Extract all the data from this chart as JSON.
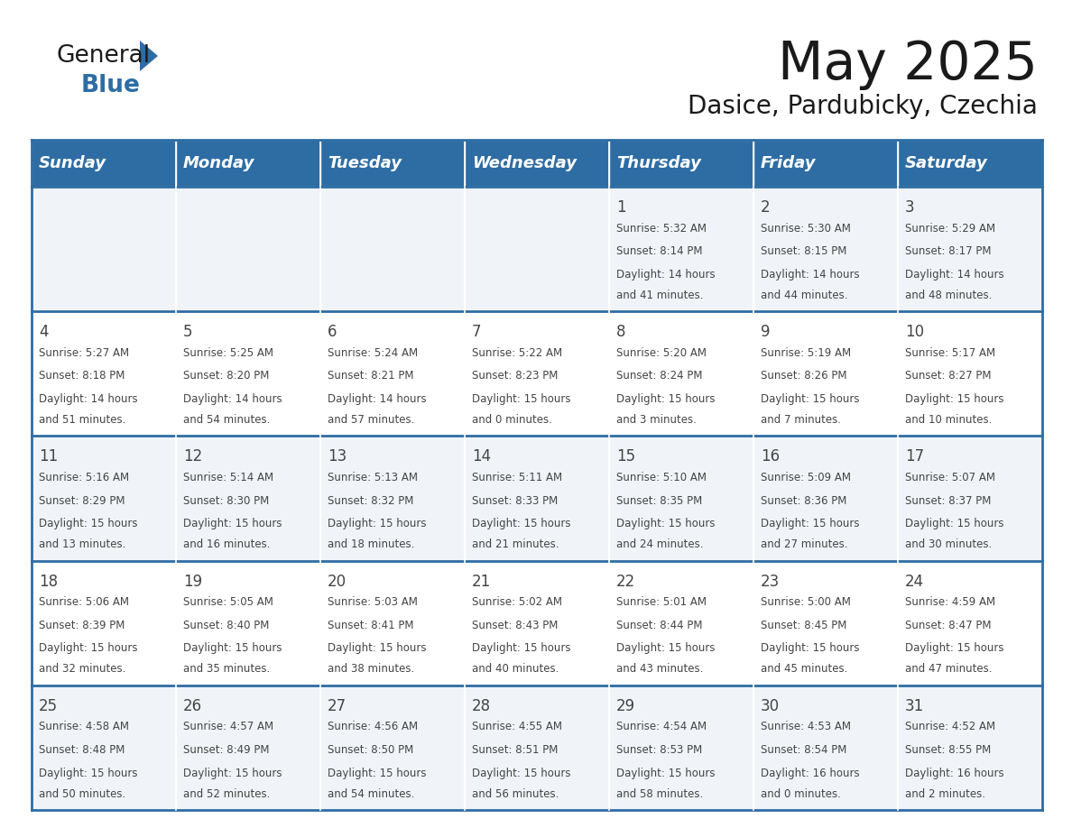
{
  "title": "May 2025",
  "subtitle": "Dasice, Pardubicky, Czechia",
  "days_of_week": [
    "Sunday",
    "Monday",
    "Tuesday",
    "Wednesday",
    "Thursday",
    "Friday",
    "Saturday"
  ],
  "header_bg": "#2e6da4",
  "header_text": "#ffffff",
  "row_bg_odd": "#f0f4f8",
  "row_bg_even": "#ffffff",
  "separator_color": "#2e6da4",
  "text_color": "#444444",
  "title_color": "#1a1a1a",
  "logo_black": "#1a1a1a",
  "logo_blue": "#2e6da4",
  "calendar_data": [
    [
      {
        "day": null,
        "sunrise": null,
        "sunset": null,
        "daylight": null
      },
      {
        "day": null,
        "sunrise": null,
        "sunset": null,
        "daylight": null
      },
      {
        "day": null,
        "sunrise": null,
        "sunset": null,
        "daylight": null
      },
      {
        "day": null,
        "sunrise": null,
        "sunset": null,
        "daylight": null
      },
      {
        "day": 1,
        "sunrise": "5:32 AM",
        "sunset": "8:14 PM",
        "daylight": "14 hours and 41 minutes."
      },
      {
        "day": 2,
        "sunrise": "5:30 AM",
        "sunset": "8:15 PM",
        "daylight": "14 hours and 44 minutes."
      },
      {
        "day": 3,
        "sunrise": "5:29 AM",
        "sunset": "8:17 PM",
        "daylight": "14 hours and 48 minutes."
      }
    ],
    [
      {
        "day": 4,
        "sunrise": "5:27 AM",
        "sunset": "8:18 PM",
        "daylight": "14 hours and 51 minutes."
      },
      {
        "day": 5,
        "sunrise": "5:25 AM",
        "sunset": "8:20 PM",
        "daylight": "14 hours and 54 minutes."
      },
      {
        "day": 6,
        "sunrise": "5:24 AM",
        "sunset": "8:21 PM",
        "daylight": "14 hours and 57 minutes."
      },
      {
        "day": 7,
        "sunrise": "5:22 AM",
        "sunset": "8:23 PM",
        "daylight": "15 hours and 0 minutes."
      },
      {
        "day": 8,
        "sunrise": "5:20 AM",
        "sunset": "8:24 PM",
        "daylight": "15 hours and 3 minutes."
      },
      {
        "day": 9,
        "sunrise": "5:19 AM",
        "sunset": "8:26 PM",
        "daylight": "15 hours and 7 minutes."
      },
      {
        "day": 10,
        "sunrise": "5:17 AM",
        "sunset": "8:27 PM",
        "daylight": "15 hours and 10 minutes."
      }
    ],
    [
      {
        "day": 11,
        "sunrise": "5:16 AM",
        "sunset": "8:29 PM",
        "daylight": "15 hours and 13 minutes."
      },
      {
        "day": 12,
        "sunrise": "5:14 AM",
        "sunset": "8:30 PM",
        "daylight": "15 hours and 16 minutes."
      },
      {
        "day": 13,
        "sunrise": "5:13 AM",
        "sunset": "8:32 PM",
        "daylight": "15 hours and 18 minutes."
      },
      {
        "day": 14,
        "sunrise": "5:11 AM",
        "sunset": "8:33 PM",
        "daylight": "15 hours and 21 minutes."
      },
      {
        "day": 15,
        "sunrise": "5:10 AM",
        "sunset": "8:35 PM",
        "daylight": "15 hours and 24 minutes."
      },
      {
        "day": 16,
        "sunrise": "5:09 AM",
        "sunset": "8:36 PM",
        "daylight": "15 hours and 27 minutes."
      },
      {
        "day": 17,
        "sunrise": "5:07 AM",
        "sunset": "8:37 PM",
        "daylight": "15 hours and 30 minutes."
      }
    ],
    [
      {
        "day": 18,
        "sunrise": "5:06 AM",
        "sunset": "8:39 PM",
        "daylight": "15 hours and 32 minutes."
      },
      {
        "day": 19,
        "sunrise": "5:05 AM",
        "sunset": "8:40 PM",
        "daylight": "15 hours and 35 minutes."
      },
      {
        "day": 20,
        "sunrise": "5:03 AM",
        "sunset": "8:41 PM",
        "daylight": "15 hours and 38 minutes."
      },
      {
        "day": 21,
        "sunrise": "5:02 AM",
        "sunset": "8:43 PM",
        "daylight": "15 hours and 40 minutes."
      },
      {
        "day": 22,
        "sunrise": "5:01 AM",
        "sunset": "8:44 PM",
        "daylight": "15 hours and 43 minutes."
      },
      {
        "day": 23,
        "sunrise": "5:00 AM",
        "sunset": "8:45 PM",
        "daylight": "15 hours and 45 minutes."
      },
      {
        "day": 24,
        "sunrise": "4:59 AM",
        "sunset": "8:47 PM",
        "daylight": "15 hours and 47 minutes."
      }
    ],
    [
      {
        "day": 25,
        "sunrise": "4:58 AM",
        "sunset": "8:48 PM",
        "daylight": "15 hours and 50 minutes."
      },
      {
        "day": 26,
        "sunrise": "4:57 AM",
        "sunset": "8:49 PM",
        "daylight": "15 hours and 52 minutes."
      },
      {
        "day": 27,
        "sunrise": "4:56 AM",
        "sunset": "8:50 PM",
        "daylight": "15 hours and 54 minutes."
      },
      {
        "day": 28,
        "sunrise": "4:55 AM",
        "sunset": "8:51 PM",
        "daylight": "15 hours and 56 minutes."
      },
      {
        "day": 29,
        "sunrise": "4:54 AM",
        "sunset": "8:53 PM",
        "daylight": "15 hours and 58 minutes."
      },
      {
        "day": 30,
        "sunrise": "4:53 AM",
        "sunset": "8:54 PM",
        "daylight": "16 hours and 0 minutes."
      },
      {
        "day": 31,
        "sunrise": "4:52 AM",
        "sunset": "8:55 PM",
        "daylight": "16 hours and 2 minutes."
      }
    ]
  ]
}
